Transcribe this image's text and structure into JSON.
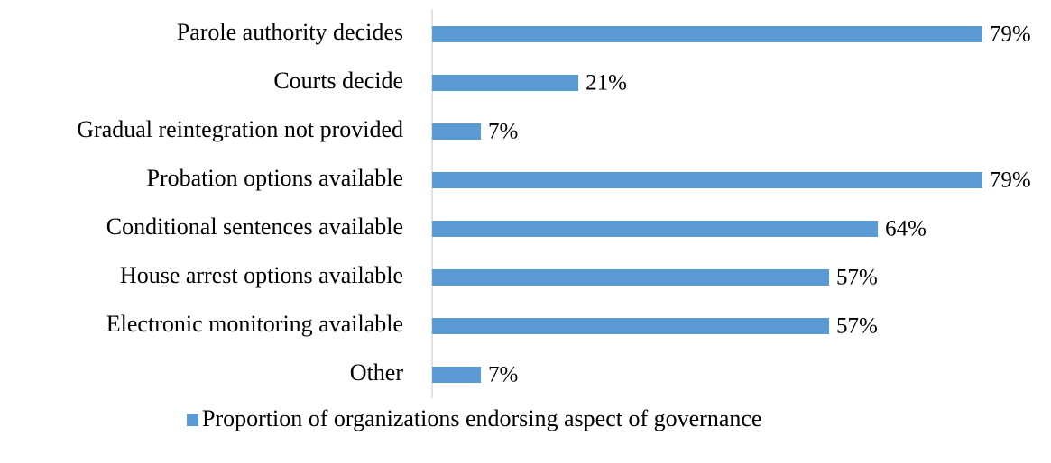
{
  "chart_data": {
    "type": "bar",
    "orientation": "horizontal",
    "categories": [
      "Parole authority decides",
      "Courts decide",
      "Gradual reintegration not provided",
      "Probation options available",
      "Conditional sentences available",
      "House arrest options available",
      "Electronic monitoring available",
      "Other"
    ],
    "series": [
      {
        "name": "Proportion of organizations endorsing aspect of governance",
        "color": "#5b9bd5",
        "values": [
          79,
          21,
          7,
          79,
          64,
          57,
          57,
          7
        ],
        "value_labels": [
          "79%",
          "21%",
          "7%",
          "79%",
          "64%",
          "57%",
          "57%",
          "7%"
        ]
      }
    ],
    "legend": "bottom"
  }
}
